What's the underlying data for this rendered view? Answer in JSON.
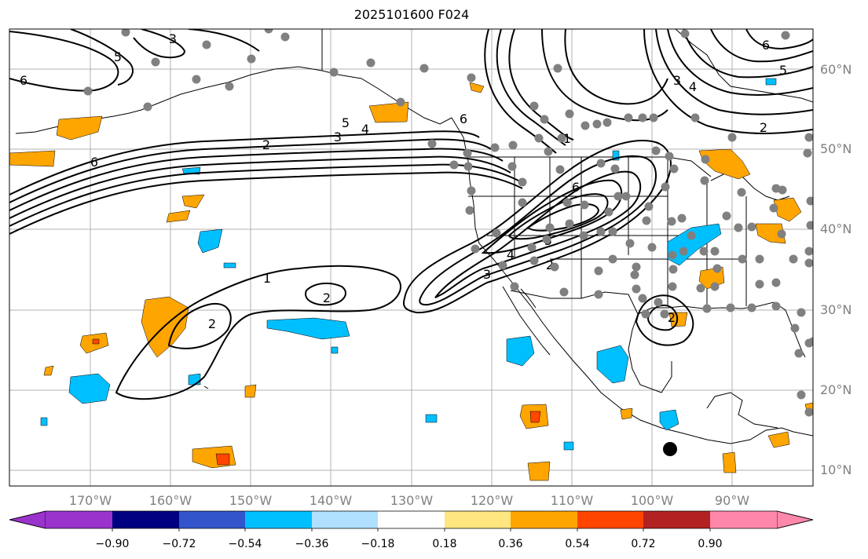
{
  "title": "2025101600 F024",
  "longitude_labels": [
    "170°W",
    "160°W",
    "150°W",
    "140°W",
    "130°W",
    "120°W",
    "110°W",
    "100°W",
    "90°W"
  ],
  "latitude_labels": [
    "60°N",
    "50°N",
    "40°N",
    "30°N",
    "20°N",
    "10°N"
  ],
  "colorbar": {
    "ticks": [
      "−0.90",
      "−0.72",
      "−0.54",
      "−0.36",
      "−0.18",
      "0.18",
      "0.36",
      "0.54",
      "0.72",
      "0.90"
    ],
    "colors": [
      "#9933cc",
      "#000080",
      "#3355cc",
      "#00bfff",
      "#b0e0ff",
      "#ffffff",
      "#ffe680",
      "#ffa500",
      "#ff4500",
      "#b22222",
      "#ff88aa"
    ]
  },
  "contour_labels": [
    "1",
    "2",
    "3",
    "4",
    "5",
    "6"
  ],
  "map": {
    "extent_lon": [
      -180,
      -80
    ],
    "extent_lat": [
      8,
      65
    ],
    "contour_color": "#000000",
    "station_dot_color": "#808080",
    "positive_anomaly_color": "#ffa500",
    "negative_anomaly_color": "#00bfff",
    "marker_color": "#000000"
  }
}
